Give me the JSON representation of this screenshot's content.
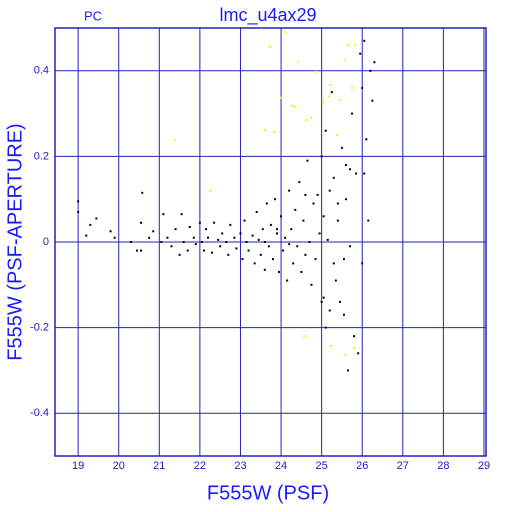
{
  "chart_data": {
    "type": "scatter",
    "title": "lmc_u4ax29",
    "annotation": "PC",
    "x_label": "F555W (PSF)",
    "y_label": "F555W (PSF-APERTURE)",
    "xlim": [
      18.43,
      29.05
    ],
    "ylim": [
      -0.5,
      0.5
    ],
    "xticks": [
      19,
      20,
      21,
      22,
      23,
      24,
      25,
      26,
      27,
      28,
      29
    ],
    "yticks": [
      -0.4,
      -0.2,
      0,
      0.2,
      0.4
    ],
    "grid": true,
    "series": [
      {
        "color": "#000000",
        "x": [
          19.0,
          19.0,
          19.2,
          19.3,
          19.45,
          19.8,
          19.9,
          20.3,
          20.45,
          20.55,
          20.55,
          20.58,
          20.75,
          20.85,
          21.05,
          21.1,
          21.2,
          21.3,
          21.4,
          21.5,
          21.55,
          21.6,
          21.7,
          21.75,
          21.85,
          21.9,
          22.0,
          22.05,
          22.1,
          22.15,
          22.2,
          22.3,
          22.35,
          22.45,
          22.5,
          22.55,
          22.65,
          22.7,
          22.75,
          22.85,
          22.9,
          23.0,
          23.05,
          23.1,
          23.15,
          23.2,
          23.3,
          23.35,
          23.4,
          23.45,
          23.5,
          23.55,
          23.6,
          23.65,
          23.7,
          23.75,
          23.8,
          23.85,
          23.9,
          23.95,
          24.0,
          24.05,
          24.1,
          24.15,
          24.2,
          24.25,
          24.3,
          24.35,
          24.4,
          24.45,
          24.5,
          24.55,
          24.6,
          24.65,
          24.7,
          24.75,
          24.8,
          24.85,
          24.9,
          24.95,
          25.0,
          25.0,
          25.05,
          25.05,
          25.1,
          25.1,
          25.15,
          25.2,
          25.2,
          25.25,
          25.3,
          25.3,
          25.35,
          25.4,
          25.45,
          25.5,
          25.55,
          25.6,
          25.65,
          25.7,
          25.7,
          25.75,
          25.8,
          25.85,
          25.9,
          25.95,
          26.0,
          26.0,
          26.05,
          26.05,
          26.1,
          26.15,
          26.2,
          26.25,
          26.3,
          25.6,
          25.55,
          24.2,
          23.9,
          23.6,
          24.6,
          25.4
        ],
        "values": [
          0.07,
          0.095,
          0.015,
          0.04,
          0.055,
          0.025,
          0.01,
          0.0,
          -0.02,
          -0.02,
          0.045,
          0.115,
          0.01,
          0.025,
          0.0,
          0.065,
          0.01,
          -0.01,
          0.03,
          -0.03,
          0.065,
          0.0,
          -0.02,
          0.035,
          0.01,
          -0.005,
          0.045,
          0.0,
          -0.02,
          0.03,
          0.01,
          -0.025,
          0.045,
          0.005,
          -0.01,
          0.02,
          0.0,
          -0.03,
          0.04,
          0.01,
          -0.015,
          0.02,
          -0.04,
          0.05,
          0.0,
          -0.02,
          0.015,
          -0.05,
          0.07,
          0.005,
          -0.03,
          0.03,
          -0.065,
          0.09,
          -0.01,
          0.04,
          -0.04,
          0.1,
          0.02,
          -0.07,
          0.06,
          -0.02,
          0.01,
          -0.09,
          0.12,
          0.03,
          -0.05,
          0.075,
          -0.01,
          0.14,
          -0.07,
          0.05,
          -0.03,
          0.19,
          0.0,
          -0.1,
          0.09,
          -0.04,
          0.11,
          0.02,
          -0.14,
          0.2,
          -0.13,
          0.06,
          -0.2,
          0.26,
          0.005,
          -0.16,
          0.12,
          0.35,
          -0.05,
          0.15,
          -0.09,
          0.05,
          -0.14,
          0.22,
          -0.17,
          0.18,
          -0.3,
          0.17,
          -0.01,
          0.3,
          -0.22,
          0.16,
          -0.26,
          0.44,
          0.36,
          -0.05,
          0.47,
          0.16,
          0.24,
          0.05,
          0.4,
          0.33,
          0.42,
          0.1,
          -0.04,
          -0.005,
          0.03,
          0.0,
          0.11,
          0.09
        ]
      },
      {
        "color": "#ffee00",
        "x": [
          23.73,
          24.42,
          24.12,
          25.21,
          25.03,
          24.34,
          24.27,
          24.74,
          24.64,
          25.18,
          25.45,
          25.75,
          25.58,
          25.65,
          25.82,
          23.6,
          23.83,
          21.39,
          24.0,
          24.57,
          25.23,
          25.58,
          25.8,
          22.25,
          25.38,
          24.86
        ],
        "values": [
          0.456,
          0.421,
          0.49,
          0.367,
          0.327,
          0.316,
          0.318,
          0.29,
          0.285,
          0.34,
          0.332,
          0.36,
          0.426,
          0.46,
          0.46,
          0.262,
          0.257,
          0.239,
          0.337,
          -0.22,
          -0.243,
          -0.264,
          -0.248,
          0.12,
          0.25,
          0.398
        ]
      }
    ]
  }
}
